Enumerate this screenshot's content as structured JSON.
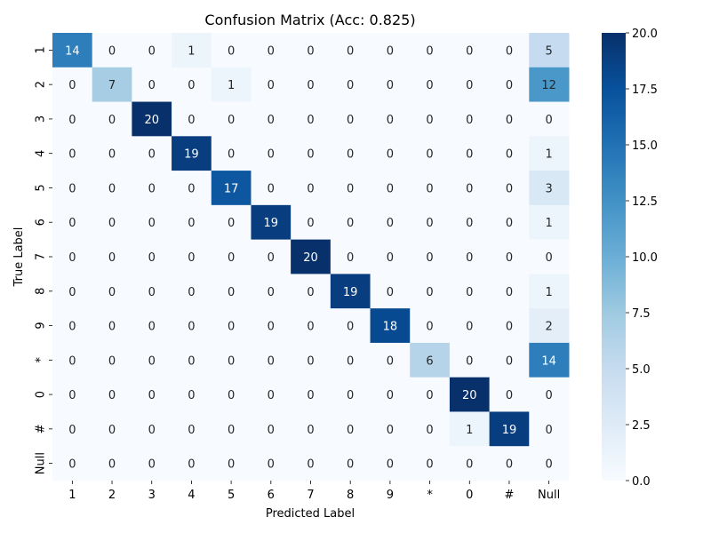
{
  "chart_data": {
    "type": "heatmap",
    "title": "Confusion Matrix (Acc: 0.825)",
    "xlabel": "Predicted Label",
    "ylabel": "True Label",
    "x_categories": [
      "1",
      "2",
      "3",
      "4",
      "5",
      "6",
      "7",
      "8",
      "9",
      "*",
      "0",
      "#",
      "Null"
    ],
    "y_categories": [
      "1",
      "2",
      "3",
      "4",
      "5",
      "6",
      "7",
      "8",
      "9",
      "*",
      "0",
      "#",
      "Null"
    ],
    "values": [
      [
        14,
        0,
        0,
        1,
        0,
        0,
        0,
        0,
        0,
        0,
        0,
        0,
        5
      ],
      [
        0,
        7,
        0,
        0,
        1,
        0,
        0,
        0,
        0,
        0,
        0,
        0,
        12
      ],
      [
        0,
        0,
        20,
        0,
        0,
        0,
        0,
        0,
        0,
        0,
        0,
        0,
        0
      ],
      [
        0,
        0,
        0,
        19,
        0,
        0,
        0,
        0,
        0,
        0,
        0,
        0,
        1
      ],
      [
        0,
        0,
        0,
        0,
        17,
        0,
        0,
        0,
        0,
        0,
        0,
        0,
        3
      ],
      [
        0,
        0,
        0,
        0,
        0,
        19,
        0,
        0,
        0,
        0,
        0,
        0,
        1
      ],
      [
        0,
        0,
        0,
        0,
        0,
        0,
        20,
        0,
        0,
        0,
        0,
        0,
        0
      ],
      [
        0,
        0,
        0,
        0,
        0,
        0,
        0,
        19,
        0,
        0,
        0,
        0,
        1
      ],
      [
        0,
        0,
        0,
        0,
        0,
        0,
        0,
        0,
        18,
        0,
        0,
        0,
        2
      ],
      [
        0,
        0,
        0,
        0,
        0,
        0,
        0,
        0,
        0,
        6,
        0,
        0,
        14
      ],
      [
        0,
        0,
        0,
        0,
        0,
        0,
        0,
        0,
        0,
        0,
        20,
        0,
        0
      ],
      [
        0,
        0,
        0,
        0,
        0,
        0,
        0,
        0,
        0,
        0,
        1,
        19,
        0
      ],
      [
        0,
        0,
        0,
        0,
        0,
        0,
        0,
        0,
        0,
        0,
        0,
        0,
        0
      ]
    ],
    "colormap": "Blues",
    "colorbar": {
      "min": 0.0,
      "max": 20.0,
      "ticks": [
        "0.0",
        "2.5",
        "5.0",
        "7.5",
        "10.0",
        "12.5",
        "15.0",
        "17.5",
        "20.0"
      ]
    }
  }
}
